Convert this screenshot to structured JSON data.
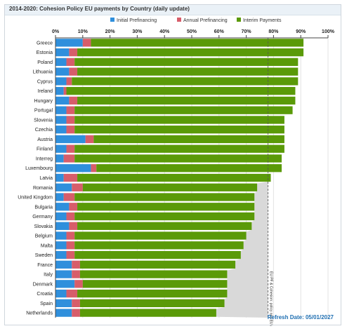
{
  "chart_title": "2014-2020: Cohesion Policy EU payments by Country (daily update)",
  "refresh_text": "Refresh Date: 05/01/2027",
  "colors": {
    "initial": "#2f8fdc",
    "annual": "#d75d6a",
    "interim": "#5a9a08",
    "arrow_area": "#d9d9d9"
  },
  "chart_data": {
    "type": "bar",
    "orientation": "horizontal",
    "stacked": true,
    "title": "2014-2020: Cohesion Policy EU payments by Country (daily update)",
    "xlim": [
      0,
      100
    ],
    "x_ticks": [
      "0%",
      "10%",
      "20%",
      "30%",
      "40%",
      "50%",
      "60%",
      "70%",
      "80%",
      "90%",
      "100%"
    ],
    "legend_position": "top",
    "grid": true,
    "categories": [
      "Greece",
      "Estonia",
      "Poland",
      "Lithuania",
      "Cyprus",
      "Ireland",
      "Hungary",
      "Portugal",
      "Slovenia",
      "Czechia",
      "Austria",
      "Finland",
      "Interreg",
      "Luxembourg",
      "Latvia",
      "Romania",
      "United Kingdom",
      "Bulgaria",
      "Germany",
      "Slovakia",
      "Belgium",
      "Malta",
      "Sweden",
      "France",
      "Italy",
      "Denmark",
      "Croatia",
      "Spain",
      "Netherlands"
    ],
    "series": [
      {
        "name": "Initial Prefinancing",
        "values": [
          10,
          5,
          4,
          5,
          4,
          3,
          5,
          4,
          4,
          4,
          11,
          4,
          3,
          13,
          3,
          6,
          3,
          5,
          4,
          5,
          4,
          4,
          4,
          6,
          6,
          7,
          4,
          6,
          6
        ]
      },
      {
        "name": "Annual Prefinancing",
        "values": [
          3,
          3,
          3,
          3,
          2,
          1,
          3,
          3,
          3,
          3,
          3,
          3,
          4,
          2,
          5,
          4,
          4,
          3,
          3,
          3,
          3,
          3,
          3,
          3,
          3,
          3,
          4,
          3,
          3
        ]
      },
      {
        "name": "Interim Payments",
        "values": [
          78,
          83,
          82,
          81,
          83,
          84,
          80,
          80,
          77,
          77,
          70,
          77,
          76,
          68,
          71,
          64,
          66,
          65,
          66,
          64,
          63,
          62,
          61,
          57,
          54,
          53,
          55,
          53,
          50
        ]
      }
    ],
    "reference_line": {
      "value": 78,
      "label": "EU PF & Cohesion: policy and EU average"
    }
  }
}
